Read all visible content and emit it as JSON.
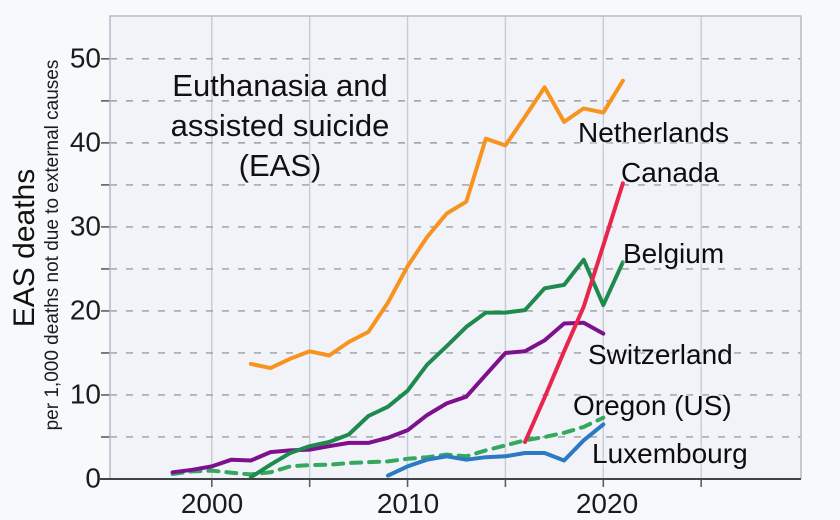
{
  "title": {
    "line1": "Euthanasia and",
    "line2": "assisted suicide",
    "line3": "(EAS)"
  },
  "y_axis": {
    "label": "EAS deaths",
    "sublabel": "per 1,000 deaths not due to external causes",
    "ticks": [
      0,
      10,
      20,
      30,
      40,
      50
    ]
  },
  "x_axis": {
    "ticks": [
      2000,
      2010,
      2020
    ],
    "gridline_years": [
      2000,
      2005,
      2010,
      2015,
      2020,
      2025
    ]
  },
  "colors": {
    "background": "#f8f9fb",
    "plot_background": "#f1f3f9",
    "frame": "#b6bbc6",
    "axis": "#3f4246",
    "vgrid": "#c7cbd4",
    "hgrid": "#989da4",
    "tick": "#5c6066"
  },
  "chart_data": {
    "type": "line",
    "title": "Euthanasia and assisted suicide (EAS)",
    "xlabel": "",
    "ylabel": "EAS deaths per 1,000 deaths not due to external causes",
    "xlim": [
      1994.8,
      2030.1
    ],
    "ylim": [
      0,
      55.1
    ],
    "grid": "on",
    "legend_position": "inline-right-labels",
    "y_gridline_step": 5,
    "series": [
      {
        "name": "Oregon (US)",
        "color": "#35a85f",
        "dash": "dashed",
        "points": [
          [
            1998,
            0.6
          ],
          [
            1999,
            0.9
          ],
          [
            2000,
            1.0
          ],
          [
            2001,
            0.75
          ],
          [
            2002,
            0.55
          ],
          [
            2003,
            0.8
          ],
          [
            2004,
            1.5
          ],
          [
            2005,
            1.65
          ],
          [
            2006,
            1.7
          ],
          [
            2007,
            1.9
          ],
          [
            2008,
            2.0
          ],
          [
            2009,
            2.1
          ],
          [
            2010,
            2.4
          ],
          [
            2011,
            2.6
          ],
          [
            2012,
            2.9
          ],
          [
            2013,
            2.7
          ],
          [
            2014,
            3.4
          ],
          [
            2015,
            4.0
          ],
          [
            2016,
            4.6
          ],
          [
            2017,
            5.0
          ],
          [
            2018,
            5.5
          ],
          [
            2019,
            6.2
          ],
          [
            2020,
            7.3
          ]
        ]
      },
      {
        "name": "Luxembourg",
        "color": "#2b7ac2",
        "dash": "solid",
        "points": [
          [
            2009,
            0.4
          ],
          [
            2010,
            1.5
          ],
          [
            2011,
            2.3
          ],
          [
            2012,
            2.7
          ],
          [
            2013,
            2.3
          ],
          [
            2014,
            2.6
          ],
          [
            2015,
            2.7
          ],
          [
            2016,
            3.1
          ],
          [
            2017,
            3.1
          ],
          [
            2018,
            2.2
          ],
          [
            2019,
            4.6
          ],
          [
            2020,
            6.5
          ]
        ]
      },
      {
        "name": "Switzerland",
        "color": "#7e108e",
        "dash": "solid",
        "points": [
          [
            1998,
            0.8
          ],
          [
            1999,
            1.1
          ],
          [
            2000,
            1.5
          ],
          [
            2001,
            2.3
          ],
          [
            2002,
            2.2
          ],
          [
            2003,
            3.2
          ],
          [
            2004,
            3.4
          ],
          [
            2005,
            3.5
          ],
          [
            2006,
            3.9
          ],
          [
            2007,
            4.3
          ],
          [
            2008,
            4.3
          ],
          [
            2009,
            4.9
          ],
          [
            2010,
            5.8
          ],
          [
            2011,
            7.6
          ],
          [
            2012,
            9.0
          ],
          [
            2013,
            9.8
          ],
          [
            2014,
            12.4
          ],
          [
            2015,
            15.0
          ],
          [
            2016,
            15.2
          ],
          [
            2017,
            16.5
          ],
          [
            2018,
            18.5
          ],
          [
            2019,
            18.6
          ],
          [
            2020,
            17.3
          ]
        ]
      },
      {
        "name": "Belgium",
        "color": "#1e8a4d",
        "dash": "solid",
        "points": [
          [
            2002,
            0.2
          ],
          [
            2003,
            1.7
          ],
          [
            2004,
            3.1
          ],
          [
            2005,
            3.9
          ],
          [
            2006,
            4.4
          ],
          [
            2007,
            5.3
          ],
          [
            2008,
            7.5
          ],
          [
            2009,
            8.6
          ],
          [
            2010,
            10.5
          ],
          [
            2011,
            13.6
          ],
          [
            2012,
            15.8
          ],
          [
            2013,
            18.1
          ],
          [
            2014,
            19.8
          ],
          [
            2015,
            19.8
          ],
          [
            2016,
            20.1
          ],
          [
            2017,
            22.7
          ],
          [
            2018,
            23.1
          ],
          [
            2019,
            26.1
          ],
          [
            2020,
            20.7
          ],
          [
            2021,
            25.8
          ]
        ]
      },
      {
        "name": "Netherlands",
        "color": "#f7941e",
        "dash": "solid",
        "points": [
          [
            2002,
            13.7
          ],
          [
            2003,
            13.2
          ],
          [
            2004,
            14.3
          ],
          [
            2005,
            15.2
          ],
          [
            2006,
            14.7
          ],
          [
            2007,
            16.3
          ],
          [
            2008,
            17.5
          ],
          [
            2009,
            21.0
          ],
          [
            2010,
            25.3
          ],
          [
            2011,
            28.8
          ],
          [
            2012,
            31.6
          ],
          [
            2013,
            33.0
          ],
          [
            2014,
            40.5
          ],
          [
            2015,
            39.7
          ],
          [
            2016,
            43.1
          ],
          [
            2017,
            46.6
          ],
          [
            2018,
            42.5
          ],
          [
            2019,
            44.1
          ],
          [
            2020,
            43.6
          ],
          [
            2021,
            47.4
          ]
        ]
      },
      {
        "name": "Canada",
        "color": "#e8254c",
        "dash": "solid",
        "points": [
          [
            2016,
            4.4
          ],
          [
            2017,
            9.7
          ],
          [
            2018,
            15.2
          ],
          [
            2019,
            20.5
          ],
          [
            2020,
            27.8
          ],
          [
            2021,
            35.2
          ]
        ]
      }
    ]
  },
  "series_labels": {
    "netherlands": "Netherlands",
    "canada": "Canada",
    "belgium": "Belgium",
    "switzerland": "Switzerland",
    "oregon": "Oregon (US)",
    "luxembourg": "Luxembourg"
  }
}
